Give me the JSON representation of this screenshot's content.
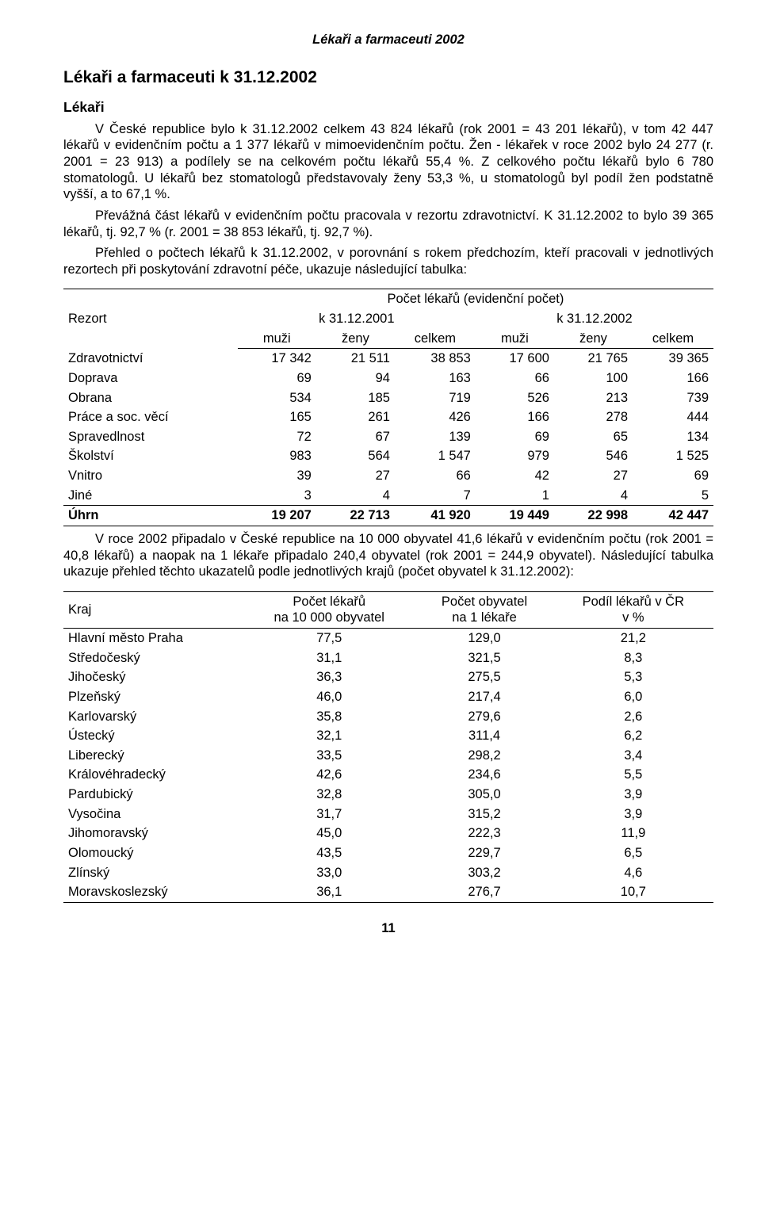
{
  "header": "Lékaři a farmaceuti 2002",
  "title": "Lékaři a farmaceuti k 31.12.2002",
  "subtitle": "Lékaři",
  "para1": "V České republice bylo k 31.12.2002 celkem 43 824 lékařů (rok 2001 = 43 201 lékařů), v tom 42 447 lékařů v evidenčním počtu a 1 377 lékařů v mimoevidenčním počtu. Žen - lékařek v roce 2002 bylo 24 277 (r. 2001 = 23 913) a podílely se na celkovém počtu lékařů 55,4 %. Z celkového počtu lékařů bylo 6 780 stomatologů. U lékařů bez stomatologů představovaly ženy 53,3 %, u stomatologů byl podíl žen podstatně vyšší, a to 67,1 %.",
  "para2": "Převážná část lékařů v evidenčním počtu pracovala v rezortu zdravotnictví. K 31.12.2002 to bylo 39 365 lékařů, tj. 92,7 % (r. 2001 = 38 853 lékařů, tj. 92,7 %).",
  "para3": "Přehled o počtech lékařů k 31.12.2002, v porovnání s rokem předchozím, kteří pracovali v jednotlivých rezortech při poskytování zdravotní péče, ukazuje následující tabulka:",
  "table1": {
    "superheader": "Počet lékařů (evidenční počet)",
    "col_label": "Rezort",
    "year1": "k 31.12.2001",
    "year2": "k 31.12.2002",
    "cols": [
      "muži",
      "ženy",
      "celkem",
      "muži",
      "ženy",
      "celkem"
    ],
    "rows": [
      [
        "Zdravotnictví",
        "17 342",
        "21 511",
        "38 853",
        "17 600",
        "21 765",
        "39 365"
      ],
      [
        "Doprava",
        "69",
        "94",
        "163",
        "66",
        "100",
        "166"
      ],
      [
        "Obrana",
        "534",
        "185",
        "719",
        "526",
        "213",
        "739"
      ],
      [
        "Práce a soc. věcí",
        "165",
        "261",
        "426",
        "166",
        "278",
        "444"
      ],
      [
        "Spravedlnost",
        "72",
        "67",
        "139",
        "69",
        "65",
        "134"
      ],
      [
        "Školství",
        "983",
        "564",
        "1 547",
        "979",
        "546",
        "1 525"
      ],
      [
        "Vnitro",
        "39",
        "27",
        "66",
        "42",
        "27",
        "69"
      ],
      [
        "Jiné",
        "3",
        "4",
        "7",
        "1",
        "4",
        "5"
      ]
    ],
    "total": [
      "Úhrn",
      "19 207",
      "22 713",
      "41 920",
      "19 449",
      "22 998",
      "42 447"
    ]
  },
  "para4": "V roce 2002 připadalo v České republice na 10 000 obyvatel 41,6 lékařů v evidenčním počtu (rok 2001 = 40,8 lékařů) a naopak na 1 lékaře připadalo 240,4 obyvatel (rok 2001 = 244,9 obyvatel). Následující tabulka ukazuje přehled těchto ukazatelů podle jednotlivých krajů (počet obyvatel k 31.12.2002):",
  "table2": {
    "col_label": "Kraj",
    "cols": [
      "Počet lékařů\nna 10 000 obyvatel",
      "Počet obyvatel\nna 1 lékaře",
      "Podíl lékařů v ČR\nv %"
    ],
    "rows": [
      [
        "Hlavní město Praha",
        "77,5",
        "129,0",
        "21,2"
      ],
      [
        "Středočeský",
        "31,1",
        "321,5",
        "8,3"
      ],
      [
        "Jihočeský",
        "36,3",
        "275,5",
        "5,3"
      ],
      [
        "Plzeňský",
        "46,0",
        "217,4",
        "6,0"
      ],
      [
        "Karlovarský",
        "35,8",
        "279,6",
        "2,6"
      ],
      [
        "Ústecký",
        "32,1",
        "311,4",
        "6,2"
      ],
      [
        "Liberecký",
        "33,5",
        "298,2",
        "3,4"
      ],
      [
        "Královéhradecký",
        "42,6",
        "234,6",
        "5,5"
      ],
      [
        "Pardubický",
        "32,8",
        "305,0",
        "3,9"
      ],
      [
        "Vysočina",
        "31,7",
        "315,2",
        "3,9"
      ],
      [
        "Jihomoravský",
        "45,0",
        "222,3",
        "11,9"
      ],
      [
        "Olomoucký",
        "43,5",
        "229,7",
        "6,5"
      ],
      [
        "Zlínský",
        "33,0",
        "303,2",
        "4,6"
      ],
      [
        "Moravskoslezský",
        "36,1",
        "276,7",
        "10,7"
      ]
    ]
  },
  "pagenum": "11"
}
